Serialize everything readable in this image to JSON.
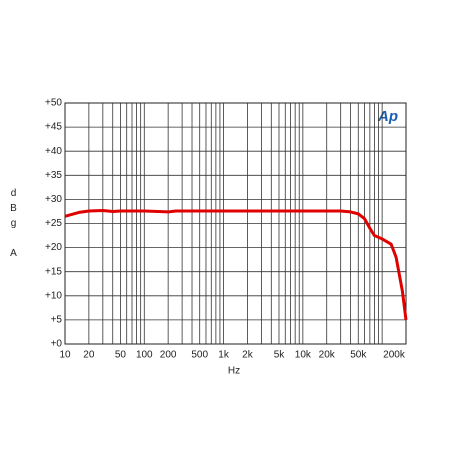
{
  "chart_data": {
    "type": "line",
    "xscale": "log",
    "grid": true,
    "color": "#e00000",
    "logo": "Ap",
    "xlabel": "Hz",
    "ylabel": "dBg A",
    "xlim": [
      10,
      200000
    ],
    "ylim": [
      0,
      50
    ],
    "xticks": [
      10,
      20,
      50,
      100,
      200,
      500,
      {
        "value": 1000,
        "label": "1k"
      },
      {
        "value": 2000,
        "label": "2k"
      },
      {
        "value": 5000,
        "label": "5k"
      },
      {
        "value": 10000,
        "label": "10k"
      },
      {
        "value": 20000,
        "label": "20k"
      },
      {
        "value": 50000,
        "label": "50k"
      },
      {
        "value": 200000,
        "label": "200k"
      }
    ],
    "xminorticks": [
      30,
      40,
      60,
      70,
      80,
      90,
      300,
      400,
      600,
      700,
      800,
      900,
      3000,
      4000,
      6000,
      7000,
      8000,
      9000,
      30000,
      40000,
      60000,
      70000,
      80000,
      90000,
      100000
    ],
    "yticks": [
      {
        "value": 0,
        "label": "+0"
      },
      {
        "value": 5,
        "label": "+5"
      },
      {
        "value": 10,
        "label": "+10"
      },
      {
        "value": 15,
        "label": "+15"
      },
      {
        "value": 20,
        "label": "+20"
      },
      {
        "value": 25,
        "label": "+25"
      },
      {
        "value": 30,
        "label": "+30"
      },
      {
        "value": 35,
        "label": "+35"
      },
      {
        "value": 40,
        "label": "+40"
      },
      {
        "value": 45,
        "label": "+45"
      },
      {
        "value": 50,
        "label": "+50"
      }
    ],
    "x": [
      10,
      15,
      20,
      30,
      40,
      50,
      100,
      200,
      250,
      1000,
      10000,
      30000,
      40000,
      50000,
      60000,
      70000,
      80000,
      100000,
      130000,
      150000,
      180000,
      200000
    ],
    "values": [
      26.5,
      27.3,
      27.6,
      27.7,
      27.5,
      27.6,
      27.6,
      27.4,
      27.6,
      27.6,
      27.6,
      27.6,
      27.4,
      27,
      26,
      24,
      22.5,
      21.8,
      20.7,
      18,
      11,
      5
    ]
  }
}
